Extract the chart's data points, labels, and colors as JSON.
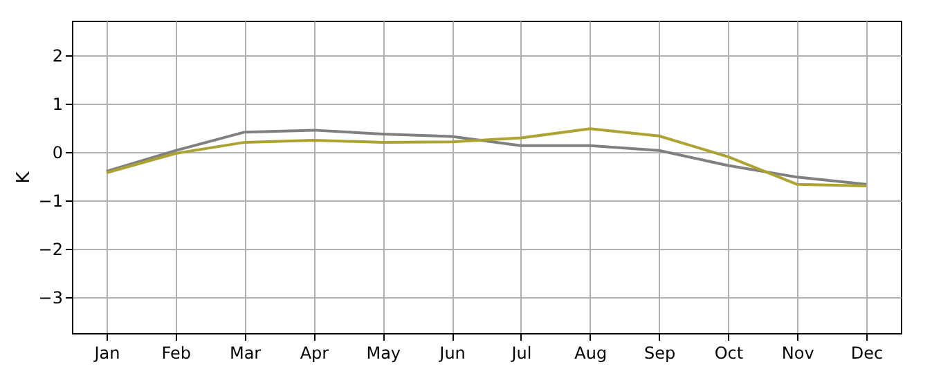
{
  "chart_data": {
    "type": "line",
    "ylabel": "K",
    "categories": [
      "Jan",
      "Feb",
      "Mar",
      "Apr",
      "May",
      "Jun",
      "Jul",
      "Aug",
      "Sep",
      "Oct",
      "Nov",
      "Dec"
    ],
    "series": [
      {
        "color": "#808080",
        "values": [
          -0.4,
          0.03,
          0.41,
          0.45,
          0.37,
          0.32,
          0.13,
          0.13,
          0.03,
          -0.28,
          -0.52,
          -0.67
        ]
      },
      {
        "color": "#aca332",
        "values": [
          -0.43,
          -0.03,
          0.2,
          0.24,
          0.2,
          0.21,
          0.29,
          0.48,
          0.33,
          -0.1,
          -0.67,
          -0.7
        ]
      }
    ],
    "ylim": [
      -3.74,
      2.71
    ],
    "yticks": [
      -3,
      -2,
      -1,
      0,
      1,
      2
    ],
    "grid": true,
    "line_style": "solid",
    "marker": "none"
  }
}
